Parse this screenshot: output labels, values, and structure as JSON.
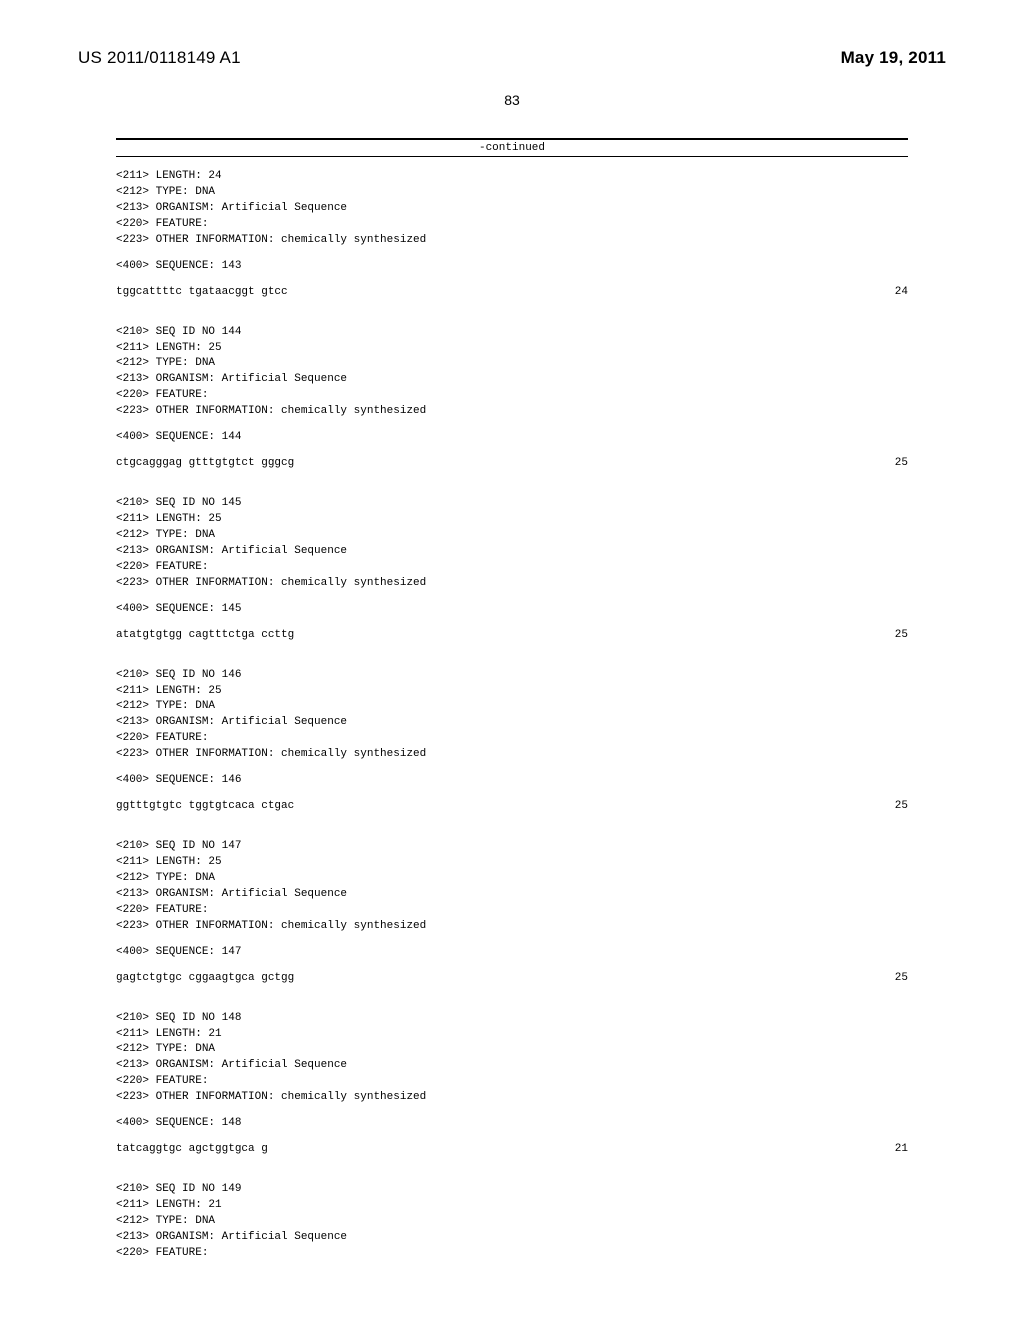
{
  "header": {
    "publication_number": "US 2011/0118149 A1",
    "publication_date": "May 19, 2011"
  },
  "page_number": "83",
  "continued_label": "-continued",
  "entries": [
    {
      "metadata_lines": [
        "<211> LENGTH: 24",
        "<212> TYPE: DNA",
        "<213> ORGANISM: Artificial Sequence",
        "<220> FEATURE:",
        "<223> OTHER INFORMATION: chemically synthesized"
      ],
      "sequence_header": "<400> SEQUENCE: 143",
      "sequence": "tggcattttc tgataacggt gtcc",
      "length": "24"
    },
    {
      "metadata_lines": [
        "<210> SEQ ID NO 144",
        "<211> LENGTH: 25",
        "<212> TYPE: DNA",
        "<213> ORGANISM: Artificial Sequence",
        "<220> FEATURE:",
        "<223> OTHER INFORMATION: chemically synthesized"
      ],
      "sequence_header": "<400> SEQUENCE: 144",
      "sequence": "ctgcagggag gtttgtgtct gggcg",
      "length": "25"
    },
    {
      "metadata_lines": [
        "<210> SEQ ID NO 145",
        "<211> LENGTH: 25",
        "<212> TYPE: DNA",
        "<213> ORGANISM: Artificial Sequence",
        "<220> FEATURE:",
        "<223> OTHER INFORMATION: chemically synthesized"
      ],
      "sequence_header": "<400> SEQUENCE: 145",
      "sequence": "atatgtgtgg cagtttctga ccttg",
      "length": "25"
    },
    {
      "metadata_lines": [
        "<210> SEQ ID NO 146",
        "<211> LENGTH: 25",
        "<212> TYPE: DNA",
        "<213> ORGANISM: Artificial Sequence",
        "<220> FEATURE:",
        "<223> OTHER INFORMATION: chemically synthesized"
      ],
      "sequence_header": "<400> SEQUENCE: 146",
      "sequence": "ggtttgtgtc tggtgtcaca ctgac",
      "length": "25"
    },
    {
      "metadata_lines": [
        "<210> SEQ ID NO 147",
        "<211> LENGTH: 25",
        "<212> TYPE: DNA",
        "<213> ORGANISM: Artificial Sequence",
        "<220> FEATURE:",
        "<223> OTHER INFORMATION: chemically synthesized"
      ],
      "sequence_header": "<400> SEQUENCE: 147",
      "sequence": "gagtctgtgc cggaagtgca gctgg",
      "length": "25"
    },
    {
      "metadata_lines": [
        "<210> SEQ ID NO 148",
        "<211> LENGTH: 21",
        "<212> TYPE: DNA",
        "<213> ORGANISM: Artificial Sequence",
        "<220> FEATURE:",
        "<223> OTHER INFORMATION: chemically synthesized"
      ],
      "sequence_header": "<400> SEQUENCE: 148",
      "sequence": "tatcaggtgc agctggtgca g",
      "length": "21"
    },
    {
      "metadata_lines": [
        "<210> SEQ ID NO 149",
        "<211> LENGTH: 21",
        "<212> TYPE: DNA",
        "<213> ORGANISM: Artificial Sequence",
        "<220> FEATURE:"
      ],
      "sequence_header": null,
      "sequence": null,
      "length": null
    }
  ]
}
